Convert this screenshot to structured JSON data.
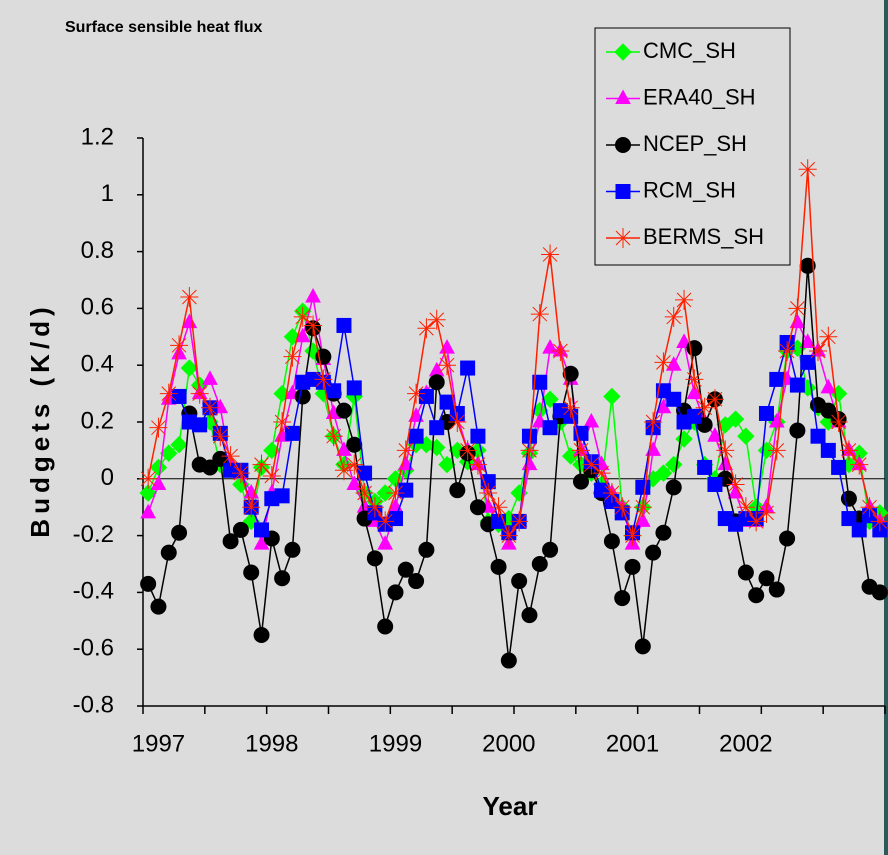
{
  "chart_data": {
    "type": "line",
    "title": "Surface sensible heat flux",
    "y_label": "Budgets (K/d)",
    "x_label": "Year",
    "categories": [
      null,
      "1997",
      null,
      null,
      null,
      null,
      null,
      null,
      null,
      null,
      null,
      null,
      "1998",
      null,
      null,
      null,
      null,
      null,
      null,
      null,
      null,
      null,
      null,
      null,
      "1999",
      null,
      null,
      null,
      null,
      null,
      null,
      null,
      null,
      null,
      null,
      "2000",
      null,
      null,
      null,
      null,
      null,
      null,
      null,
      null,
      null,
      null,
      null,
      "2001",
      null,
      null,
      null,
      null,
      null,
      null,
      null,
      null,
      null,
      null,
      "2002",
      null,
      null,
      null,
      null,
      null,
      null,
      null,
      null,
      null,
      null,
      null,
      null,
      null
    ],
    "ylim": [
      -0.8,
      1.2
    ],
    "yticks": [
      -0.8,
      -0.6,
      -0.4,
      -0.2,
      0,
      0.2,
      0.4,
      0.6,
      0.8,
      1,
      1.2
    ],
    "series": [
      {
        "name": "CMC_SH",
        "color": "#00ff00",
        "marker": "diamond",
        "values": [
          -0.05,
          0.04,
          0.09,
          0.12,
          0.39,
          0.33,
          0.2,
          0.05,
          0.04,
          -0.02,
          -0.15,
          0.04,
          0.1,
          0.3,
          0.5,
          0.59,
          0.45,
          0.3,
          0.15,
          0.05,
          0.29,
          -0.05,
          -0.08,
          -0.05,
          0.0,
          0.03,
          0.12,
          0.12,
          0.11,
          0.05,
          0.1,
          0.06,
          0.1,
          -0.15,
          -0.16,
          -0.14,
          -0.05,
          0.09,
          0.24,
          0.28,
          0.2,
          0.08,
          0.05,
          0.02,
          -0.02,
          0.29,
          -0.1,
          -0.2,
          -0.1,
          0.0,
          0.02,
          0.05,
          0.14,
          0.2,
          0.05,
          0.0,
          0.19,
          0.21,
          0.15,
          -0.1,
          0.1,
          0.2,
          0.45,
          0.46,
          0.32,
          0.25,
          0.2,
          0.3,
          0.05,
          0.09,
          -0.15,
          -0.12
        ]
      },
      {
        "name": "ERA40_SH",
        "color": "#ff00ff",
        "marker": "triangle",
        "values": [
          -0.12,
          -0.02,
          0.28,
          0.44,
          0.55,
          0.3,
          0.35,
          0.25,
          0.05,
          0.02,
          -0.05,
          -0.23,
          -0.05,
          0.15,
          0.3,
          0.5,
          0.64,
          0.42,
          0.23,
          0.1,
          -0.02,
          -0.1,
          -0.15,
          -0.23,
          -0.1,
          0.05,
          0.22,
          0.3,
          0.38,
          0.46,
          0.22,
          0.1,
          0.05,
          -0.1,
          -0.15,
          -0.23,
          -0.15,
          0.05,
          0.2,
          0.46,
          0.45,
          0.35,
          0.1,
          0.2,
          0.05,
          -0.05,
          -0.1,
          -0.23,
          -0.15,
          0.1,
          0.25,
          0.4,
          0.48,
          0.3,
          0.2,
          0.15,
          0.05,
          -0.05,
          -0.15,
          -0.15,
          -0.1,
          0.2,
          0.35,
          0.55,
          0.48,
          0.45,
          0.32,
          0.2,
          0.1,
          0.05,
          -0.1,
          -0.15
        ]
      },
      {
        "name": "NCEP_SH",
        "color": "#000000",
        "marker": "circle",
        "values": [
          -0.37,
          -0.45,
          -0.26,
          -0.19,
          0.23,
          0.05,
          0.04,
          0.07,
          -0.22,
          -0.18,
          -0.33,
          -0.55,
          -0.21,
          -0.35,
          -0.25,
          0.29,
          0.53,
          0.43,
          0.3,
          0.24,
          0.12,
          -0.14,
          -0.28,
          -0.52,
          -0.4,
          -0.32,
          -0.36,
          -0.25,
          0.34,
          0.2,
          -0.04,
          0.09,
          -0.1,
          -0.16,
          -0.31,
          -0.64,
          -0.36,
          -0.48,
          -0.3,
          -0.25,
          0.22,
          0.37,
          -0.01,
          0.03,
          -0.05,
          -0.22,
          -0.42,
          -0.31,
          -0.59,
          -0.26,
          -0.19,
          -0.03,
          0.24,
          0.46,
          0.19,
          0.28,
          0.0,
          -0.15,
          -0.33,
          -0.41,
          -0.35,
          -0.39,
          -0.21,
          0.17,
          0.75,
          0.26,
          0.24,
          0.21,
          -0.07,
          -0.14,
          -0.38,
          -0.4
        ]
      },
      {
        "name": "RCM_SH",
        "color": "#0000ff",
        "marker": "square",
        "values": [
          null,
          null,
          null,
          0.29,
          0.2,
          0.19,
          0.25,
          0.16,
          0.03,
          0.03,
          -0.1,
          -0.18,
          -0.07,
          -0.06,
          0.16,
          0.34,
          0.35,
          0.34,
          0.31,
          0.54,
          0.32,
          0.02,
          -0.12,
          -0.16,
          -0.14,
          -0.04,
          0.15,
          0.29,
          0.18,
          0.27,
          0.23,
          0.39,
          0.15,
          -0.01,
          -0.15,
          -0.19,
          -0.15,
          0.15,
          0.34,
          0.18,
          0.24,
          0.22,
          0.16,
          0.06,
          -0.04,
          -0.08,
          -0.12,
          -0.19,
          -0.03,
          0.18,
          0.31,
          0.28,
          0.2,
          0.22,
          0.04,
          -0.02,
          -0.14,
          -0.16,
          -0.14,
          -0.14,
          0.23,
          0.35,
          0.48,
          0.33,
          0.41,
          0.15,
          0.1,
          0.04,
          -0.14,
          -0.18,
          -0.13,
          -0.18
        ]
      },
      {
        "name": "BERMS_SH",
        "color": "#ff2000",
        "marker": "star",
        "values": [
          0.0,
          0.18,
          0.3,
          0.47,
          0.64,
          0.3,
          0.25,
          0.15,
          0.08,
          0.02,
          -0.1,
          0.05,
          0.01,
          0.2,
          0.43,
          0.57,
          0.54,
          0.35,
          0.15,
          0.03,
          0.05,
          -0.05,
          -0.1,
          -0.15,
          -0.05,
          0.1,
          0.3,
          0.53,
          0.56,
          0.4,
          0.2,
          0.1,
          0.05,
          -0.05,
          -0.1,
          -0.2,
          -0.15,
          0.1,
          0.58,
          0.79,
          0.45,
          0.25,
          0.1,
          0.05,
          0.02,
          -0.05,
          -0.1,
          -0.2,
          -0.1,
          0.2,
          0.41,
          0.57,
          0.63,
          0.35,
          0.25,
          0.28,
          0.1,
          -0.02,
          -0.1,
          -0.15,
          -0.12,
          0.1,
          0.45,
          0.6,
          1.09,
          0.45,
          0.5,
          0.2,
          0.1,
          0.05,
          -0.1,
          -0.15
        ]
      }
    ],
    "legend": "top-right"
  }
}
